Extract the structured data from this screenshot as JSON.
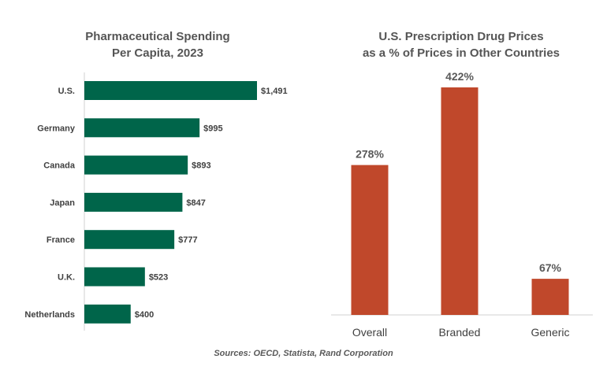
{
  "chart_data": [
    {
      "type": "bar",
      "orientation": "horizontal",
      "title_lines": [
        "Pharmaceutical Spending",
        "Per Capita, 2023"
      ],
      "categories": [
        "U.S.",
        "Germany",
        "Canada",
        "Japan",
        "France",
        "U.K.",
        "Netherlands"
      ],
      "values": [
        1491,
        995,
        893,
        847,
        777,
        523,
        400
      ],
      "labels": [
        "$1,491",
        "$995",
        "$893",
        "$847",
        "$777",
        "$523",
        "$400"
      ],
      "color": "#00654A",
      "xlim": [
        0,
        1491
      ],
      "grid": false,
      "legend": "none"
    },
    {
      "type": "bar",
      "orientation": "vertical",
      "title_lines": [
        "U.S. Prescription Drug Prices",
        "as a % of Prices in Other Countries"
      ],
      "categories": [
        "Overall",
        "Branded",
        "Generic"
      ],
      "values": [
        278,
        422,
        67
      ],
      "labels": [
        "278%",
        "422%",
        "67%"
      ],
      "color": "#C0482B",
      "ylim": [
        0,
        422
      ],
      "grid": false,
      "legend": "none"
    }
  ],
  "source": "Sources: OECD, Statista, Rand Corporation"
}
